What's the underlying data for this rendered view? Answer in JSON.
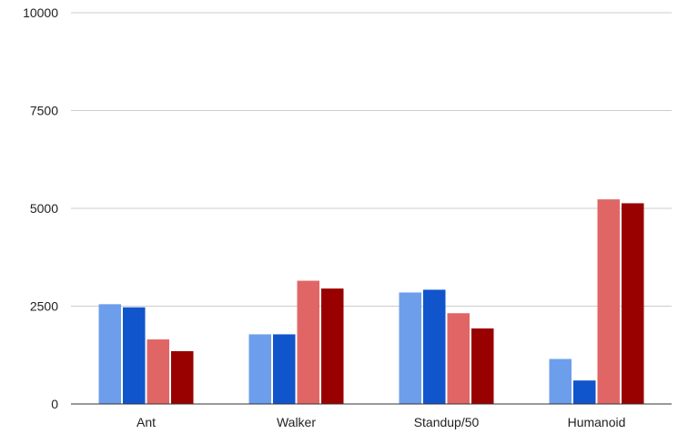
{
  "chart_data": {
    "type": "bar",
    "title": "",
    "xlabel": "",
    "ylabel": "",
    "categories": [
      "Ant",
      "Walker",
      "Standup/50",
      "Humanoid"
    ],
    "ylim": [
      0,
      10000
    ],
    "yticks": [
      0,
      2500,
      5000,
      7500,
      10000
    ],
    "grid": true,
    "legend": "none",
    "series": [
      {
        "color": "#6d9eeb",
        "values": [
          2550,
          1780,
          2850,
          1150
        ]
      },
      {
        "color": "#1155cc",
        "values": [
          2470,
          1780,
          2920,
          600
        ]
      },
      {
        "color": "#e06666",
        "values": [
          1650,
          3150,
          2320,
          5230
        ]
      },
      {
        "color": "#990000",
        "values": [
          1350,
          2950,
          1930,
          5130
        ]
      }
    ]
  }
}
